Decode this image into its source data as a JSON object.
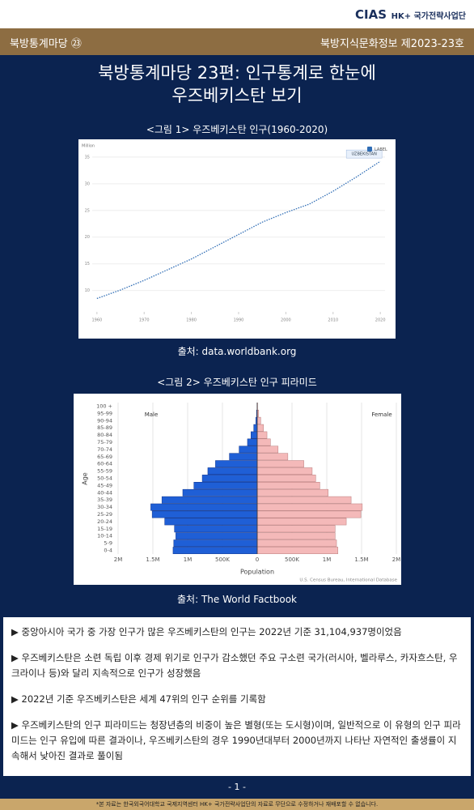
{
  "header": {
    "logo": "CIAS",
    "org": "HK+ 국가전략사업단",
    "series": "북방통계마당 ㉓",
    "issue": "북방지식문화정보 제2023-23호"
  },
  "title": {
    "line1": "북방통계마당 23편: 인구통계로 한눈에",
    "line2": "우즈베키스탄 보기"
  },
  "figures": [
    {
      "caption": "<그림 1> 우즈베키스탄 인구(1960-2020)",
      "source": "출처: data.worldbank.org",
      "chart_data": {
        "type": "line",
        "y_label": "Million",
        "legend": "LABEL",
        "annotation": "UZBEKISTAN",
        "x": [
          1960,
          1965,
          1970,
          1975,
          1980,
          1985,
          1990,
          1995,
          2000,
          2005,
          2010,
          2015,
          2020
        ],
        "series": [
          {
            "name": "UZBEKISTAN",
            "color": "#2f6db5",
            "values": [
              8.5,
              10.1,
              11.9,
              13.9,
              15.9,
              18.2,
              20.5,
              22.8,
              24.6,
              26.2,
              28.6,
              31.3,
              34.2
            ]
          }
        ],
        "xlim": [
          1959,
          2021
        ],
        "xticks": [
          1960,
          1970,
          1980,
          1990,
          2000,
          2010,
          2020
        ],
        "ylim": [
          6,
          36.5
        ],
        "yticks": [
          10,
          15,
          20,
          25,
          30,
          35
        ],
        "grid": true
      }
    },
    {
      "caption": "<그림 2> 우즈베키스탄 인구 피라미드",
      "source": "출처: The World Factbook",
      "chart_data": {
        "type": "pyramid",
        "x_label": "Population",
        "y_label": "Age",
        "note": "U.S. Census Bureau, International Database",
        "categories": [
          "0-4",
          "5-9",
          "10-14",
          "15-19",
          "20-24",
          "25-29",
          "30-34",
          "35-39",
          "40-44",
          "45-49",
          "50-54",
          "55-59",
          "60-64",
          "65-69",
          "70-74",
          "75-79",
          "80-84",
          "85-89",
          "90-94",
          "95-99",
          "100 +"
        ],
        "series": [
          {
            "name": "Male",
            "color": "#1f5fd6",
            "values": [
              1210000,
              1200000,
              1170000,
              1190000,
              1330000,
              1510000,
              1530000,
              1370000,
              1070000,
              910000,
              790000,
              710000,
              600000,
              400000,
              260000,
              140000,
              90000,
              50000,
              20000,
              10000,
              2000
            ]
          },
          {
            "name": "Female",
            "color": "#f4b9b9",
            "values": [
              1160000,
              1140000,
              1120000,
              1120000,
              1280000,
              1490000,
              1510000,
              1350000,
              1020000,
              900000,
              840000,
              790000,
              670000,
              440000,
              300000,
              190000,
              140000,
              90000,
              50000,
              20000,
              5000
            ]
          }
        ],
        "xlim": [
          0,
          2000000
        ],
        "xticks": [
          0,
          {
            "value": 500000,
            "label": "500K"
          },
          {
            "value": 1000000,
            "label": "1M"
          },
          {
            "value": 1500000,
            "label": "1.5M"
          },
          {
            "value": 2000000,
            "label": "2M"
          }
        ],
        "grid": true
      }
    }
  ],
  "bullets": [
    "▶ 중앙아시아 국가 중 가장 인구가 많은 우즈베키스탄의 인구는 2022년 기준 31,104,937명이었음",
    "▶ 우즈베키스탄은 소련 독립 이후 경제 위기로 인구가 감소했던 주요 구소련 국가(러시아, 벨라루스, 카자흐스탄, 우크라이나 등)와 달리 지속적으로 인구가 성장했음",
    "▶ 2022년 기준 우즈베키스탄은 세계 47위의 인구 순위를 기록함",
    "▶ 우즈베키스탄의 인구 피라미드는 청장년층의 비중이 높은 별형(또는 도시형)이며, 일반적으로 이 유형의 인구 피라미드는 인구 유입에 따른 결과이나, 우즈베키스탄의 경우 1990년대부터 2000년까지 나타난 자연적인 출생률이 지속해서 낮아진 결과로 풀이됨"
  ],
  "footer": {
    "page": "- 1 -",
    "notice": "*본 자료는 한국외국어대학교 국제지역센터 HK+ 국가전략사업단의 자료로 무단으로 수정하거나 재배포할 수 없습니다."
  }
}
